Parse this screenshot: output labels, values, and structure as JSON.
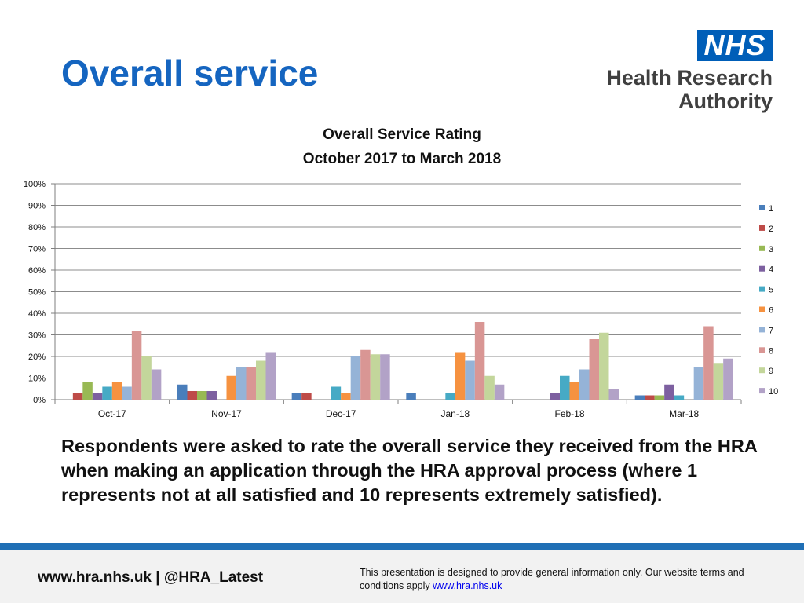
{
  "slide": {
    "title": "Overall service",
    "body": "Respondents were asked to rate the overall service they received from the HRA when making an application through the HRA approval process (where 1 represents not at all satisfied and 10 represents extremely satisfied)."
  },
  "logo": {
    "nhs": "NHS",
    "line1": "Health Research",
    "line2": "Authority"
  },
  "footer": {
    "links": "www.hra.nhs.uk | @HRA_Latest",
    "disclaimer": "This presentation is designed to provide general information only. Our website terms and conditions apply",
    "disclaimer_link": "www.hra.nhs.uk"
  },
  "chart_data": {
    "type": "bar",
    "title": "Overall Service Rating",
    "subtitle": "October 2017 to March 2018",
    "categories": [
      "Oct-17",
      "Nov-17",
      "Dec-17",
      "Jan-18",
      "Feb-18",
      "Mar-18"
    ],
    "ylim": [
      0,
      100
    ],
    "yticks": [
      "0%",
      "10%",
      "20%",
      "30%",
      "40%",
      "50%",
      "60%",
      "70%",
      "80%",
      "90%",
      "100%"
    ],
    "grid": true,
    "legend_position": "right",
    "series": [
      {
        "name": "1",
        "color": "#4a7ebb",
        "values": [
          0,
          7,
          3,
          3,
          0,
          2
        ]
      },
      {
        "name": "2",
        "color": "#be4b48",
        "values": [
          3,
          4,
          3,
          0,
          0,
          2
        ]
      },
      {
        "name": "3",
        "color": "#98b954",
        "values": [
          8,
          4,
          0,
          0,
          0,
          2
        ]
      },
      {
        "name": "4",
        "color": "#7d60a0",
        "values": [
          3,
          4,
          0,
          0,
          3,
          7
        ]
      },
      {
        "name": "5",
        "color": "#46aac5",
        "values": [
          6,
          0,
          6,
          3,
          11,
          2
        ]
      },
      {
        "name": "6",
        "color": "#f69240",
        "values": [
          8,
          11,
          3,
          22,
          8,
          0
        ]
      },
      {
        "name": "7",
        "color": "#95b3d7",
        "values": [
          6,
          15,
          20,
          18,
          14,
          15
        ]
      },
      {
        "name": "8",
        "color": "#d99694",
        "values": [
          32,
          15,
          23,
          36,
          28,
          34
        ]
      },
      {
        "name": "9",
        "color": "#c3d69b",
        "values": [
          20,
          18,
          21,
          11,
          31,
          17
        ]
      },
      {
        "name": "10",
        "color": "#b2a2c7",
        "values": [
          14,
          22,
          21,
          7,
          5,
          19
        ]
      }
    ]
  }
}
